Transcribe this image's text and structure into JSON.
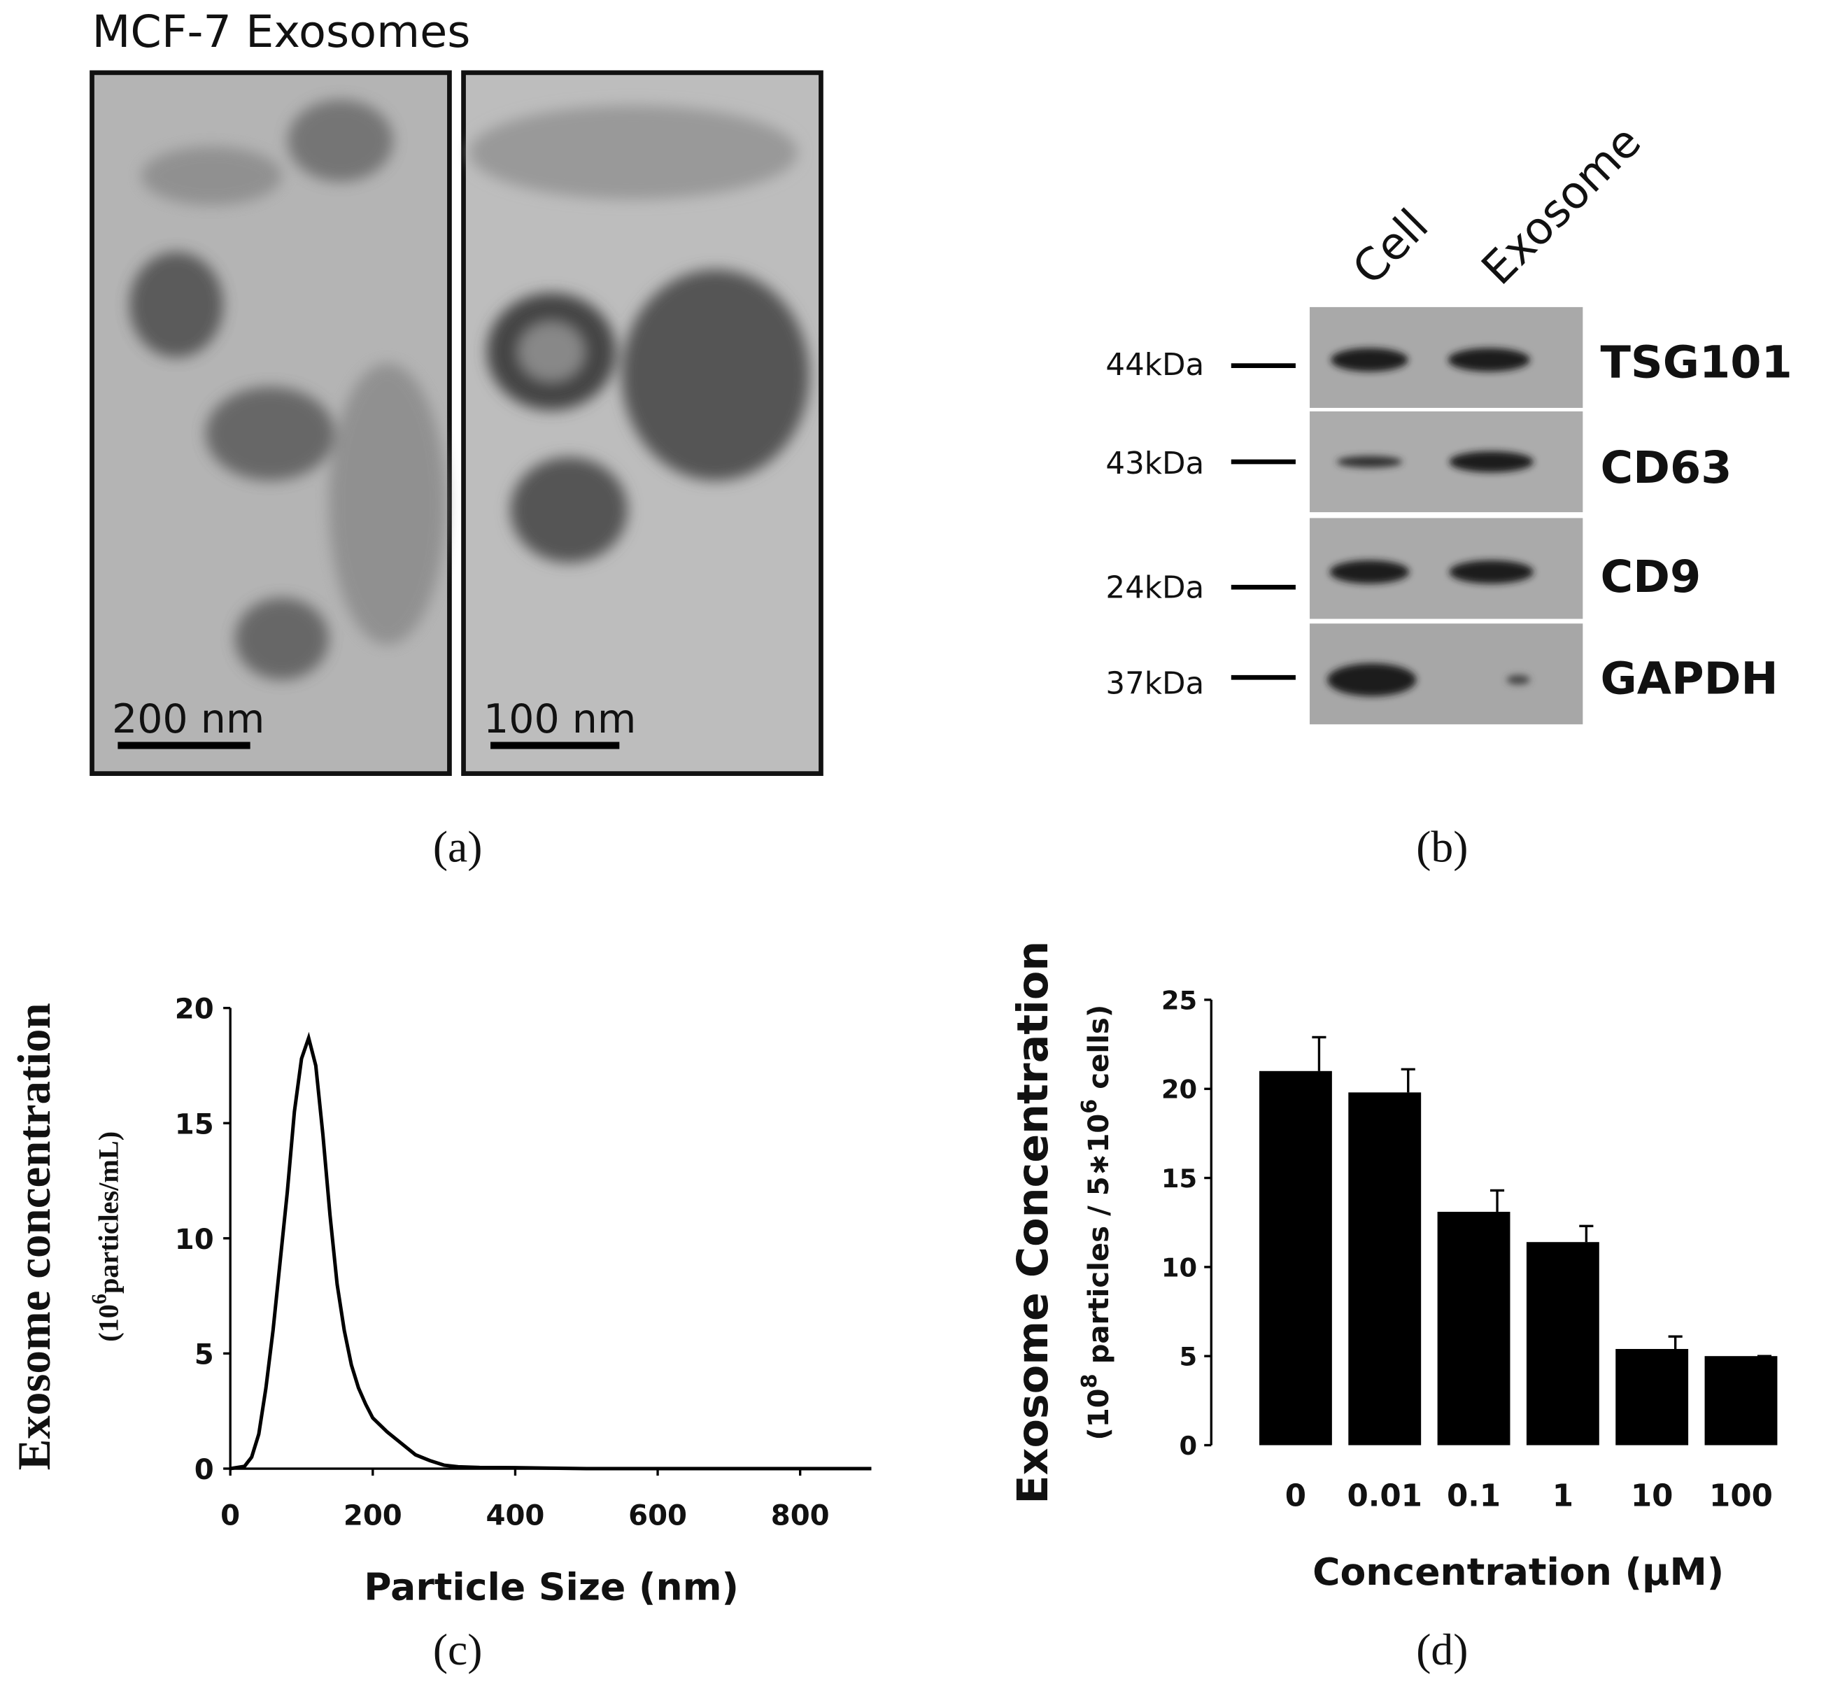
{
  "tem": {
    "title": "MCF-7 Exosomes",
    "scale_bars": [
      "200 nm",
      "100 nm"
    ],
    "label": "(a)"
  },
  "blot": {
    "lanes": [
      "Cell",
      "Exosome"
    ],
    "rows": [
      {
        "marker": "44kDa",
        "protein": "TSG101"
      },
      {
        "marker": "43kDa",
        "protein": "CD63"
      },
      {
        "marker": "24kDa",
        "protein": "CD9"
      },
      {
        "marker": "37kDa",
        "protein": "GAPDH"
      }
    ],
    "label": "(b)"
  },
  "chart_data": [
    {
      "type": "line",
      "label": "(c)",
      "x_label": "Particle Size (nm)",
      "y_label": "Exosome concentration",
      "y_label_parts": [
        "(10",
        "6",
        "particles/mL)"
      ],
      "color": "#000000",
      "xlim": [
        0,
        900
      ],
      "xticks": [
        0,
        200,
        400,
        600,
        800
      ],
      "ylim": [
        0,
        20
      ],
      "yticks": [
        0,
        5,
        10,
        15,
        20
      ],
      "x": [
        0,
        20,
        30,
        40,
        50,
        60,
        70,
        80,
        90,
        100,
        110,
        120,
        130,
        140,
        150,
        160,
        170,
        180,
        190,
        200,
        220,
        240,
        260,
        280,
        300,
        320,
        350,
        400,
        450,
        500,
        600,
        700,
        800,
        900
      ],
      "values": [
        0,
        0.1,
        0.5,
        1.5,
        3.5,
        6,
        9,
        12,
        15.5,
        17.8,
        18.7,
        17.5,
        14.5,
        11,
        8,
        6,
        4.5,
        3.5,
        2.8,
        2.2,
        1.6,
        1.1,
        0.6,
        0.35,
        0.15,
        0.08,
        0.05,
        0.04,
        0.02,
        0,
        0,
        0,
        0,
        0
      ]
    },
    {
      "type": "bar",
      "label": "(d)",
      "x_label": "Concentration (μM)",
      "y_label": "Exosome Concentration",
      "y_label_parts": [
        "(10",
        "8",
        " particles / 5∗10",
        "6",
        " cells)"
      ],
      "color": "#000000",
      "categories": [
        "0",
        "0.01",
        "0.1",
        "1",
        "10",
        "100"
      ],
      "values": [
        21,
        19.8,
        13.1,
        11.4,
        5.4,
        5.0
      ],
      "errors": [
        1.9,
        1.3,
        1.2,
        0.9,
        0.7,
        0
      ],
      "ylim": [
        0,
        25
      ],
      "yticks": [
        0,
        5,
        10,
        15,
        20,
        25
      ]
    }
  ]
}
